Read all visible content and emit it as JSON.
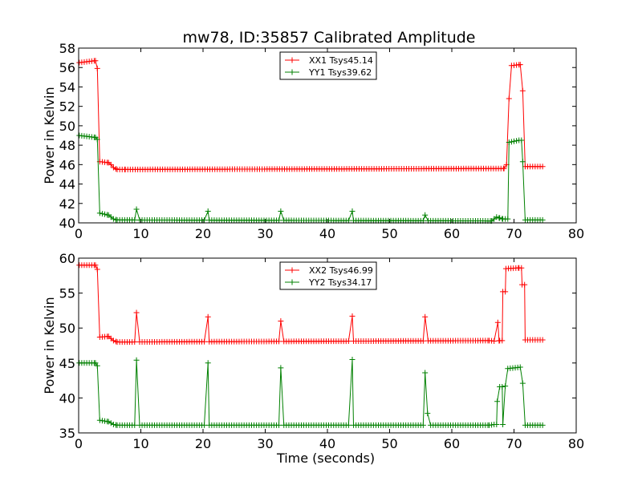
{
  "title": "mw78, ID:35857 Calibrated Amplitude",
  "chart_data": [
    {
      "type": "line",
      "title": "mw78, ID:35857 Calibrated Amplitude",
      "xlabel": "",
      "ylabel": "Power in Kelvin",
      "xlim": [
        0,
        80
      ],
      "ylim": [
        40,
        58
      ],
      "xticks": [
        "0",
        "10",
        "20",
        "30",
        "40",
        "50",
        "60",
        "70",
        "80"
      ],
      "yticks": [
        "40",
        "42",
        "44",
        "46",
        "48",
        "50",
        "52",
        "54",
        "56",
        "58"
      ],
      "legend": "top-center",
      "series": [
        {
          "name": "XX1 Tsys45.14",
          "color": "#ff0000",
          "base": 45.6,
          "steps": [
            [
              0.1,
              56.5
            ],
            [
              2.7,
              56.7
            ],
            [
              3.0,
              55.9
            ],
            [
              3.4,
              46.3
            ],
            [
              4.8,
              46.2
            ],
            [
              5.2,
              46.0
            ],
            [
              5.6,
              45.7
            ],
            [
              6.2,
              45.5
            ],
            [
              7.5,
              45.5
            ],
            [
              68.4,
              45.6
            ],
            [
              68.8,
              46.0
            ],
            [
              69.2,
              52.8
            ],
            [
              69.6,
              56.2
            ],
            [
              71.0,
              56.3
            ],
            [
              71.4,
              53.6
            ],
            [
              71.8,
              45.8
            ],
            [
              74.6,
              45.8
            ]
          ],
          "spikes": []
        },
        {
          "name": "YY1 Tsys39.62",
          "color": "#008000",
          "base": 40.3,
          "steps": [
            [
              0.1,
              49.0
            ],
            [
              2.7,
              48.8
            ],
            [
              3.0,
              48.6
            ],
            [
              3.4,
              41.0
            ],
            [
              4.8,
              40.8
            ],
            [
              5.2,
              40.6
            ],
            [
              5.6,
              40.4
            ],
            [
              6.2,
              40.3
            ],
            [
              66.4,
              40.2
            ],
            [
              67.2,
              40.6
            ],
            [
              67.7,
              40.5
            ],
            [
              68.2,
              40.4
            ],
            [
              69.2,
              48.3
            ],
            [
              70.8,
              48.5
            ],
            [
              71.4,
              46.3
            ],
            [
              71.8,
              40.3
            ],
            [
              74.6,
              40.3
            ]
          ],
          "spikes": [
            [
              9.3,
              41.4
            ],
            [
              20.8,
              41.2
            ],
            [
              32.5,
              41.2
            ],
            [
              44.0,
              41.2
            ],
            [
              55.7,
              40.8
            ]
          ]
        }
      ]
    },
    {
      "type": "line",
      "title": "",
      "xlabel": "Time (seconds)",
      "ylabel": "Power in Kelvin",
      "xlim": [
        0,
        80
      ],
      "ylim": [
        35,
        60
      ],
      "xticks": [
        "0",
        "10",
        "20",
        "30",
        "40",
        "50",
        "60",
        "70",
        "80"
      ],
      "yticks": [
        "35",
        "40",
        "45",
        "50",
        "55",
        "60"
      ],
      "legend": "top-center",
      "series": [
        {
          "name": "XX2 Tsys46.99",
          "color": "#ff0000",
          "base": 48.0,
          "steps": [
            [
              0.1,
              59.0
            ],
            [
              2.7,
              59.0
            ],
            [
              3.0,
              58.4
            ],
            [
              3.4,
              48.7
            ],
            [
              4.8,
              48.8
            ],
            [
              5.2,
              48.5
            ],
            [
              5.6,
              48.2
            ],
            [
              6.2,
              48.0
            ],
            [
              66.0,
              48.2
            ],
            [
              67.2,
              48.1
            ],
            [
              67.7,
              48.2
            ],
            [
              68.2,
              55.2
            ],
            [
              68.7,
              58.5
            ],
            [
              70.8,
              58.6
            ],
            [
              71.3,
              56.2
            ],
            [
              71.8,
              48.3
            ],
            [
              74.6,
              48.3
            ]
          ],
          "spikes": [
            [
              9.3,
              52.2
            ],
            [
              20.8,
              51.6
            ],
            [
              32.5,
              51.0
            ],
            [
              44.0,
              51.7
            ],
            [
              55.7,
              51.6
            ],
            [
              67.4,
              50.8
            ]
          ]
        },
        {
          "name": "YY2 Tsys34.17",
          "color": "#008000",
          "base": 36.1,
          "steps": [
            [
              0.1,
              45.0
            ],
            [
              2.7,
              45.0
            ],
            [
              3.0,
              44.6
            ],
            [
              3.4,
              36.8
            ],
            [
              4.8,
              36.6
            ],
            [
              5.2,
              36.4
            ],
            [
              5.6,
              36.2
            ],
            [
              6.2,
              36.1
            ],
            [
              66.0,
              36.1
            ],
            [
              66.8,
              36.2
            ],
            [
              67.3,
              39.5
            ],
            [
              67.7,
              41.6
            ],
            [
              68.2,
              36.2
            ],
            [
              68.6,
              41.7
            ],
            [
              69.0,
              44.2
            ],
            [
              71.0,
              44.4
            ],
            [
              71.4,
              42.1
            ],
            [
              71.8,
              36.1
            ],
            [
              74.6,
              36.1
            ]
          ],
          "spikes": [
            [
              9.3,
              45.4
            ],
            [
              20.8,
              45.0
            ],
            [
              32.5,
              44.3
            ],
            [
              44.0,
              45.5
            ],
            [
              55.7,
              43.6
            ],
            [
              56.1,
              37.8
            ]
          ]
        }
      ]
    }
  ]
}
